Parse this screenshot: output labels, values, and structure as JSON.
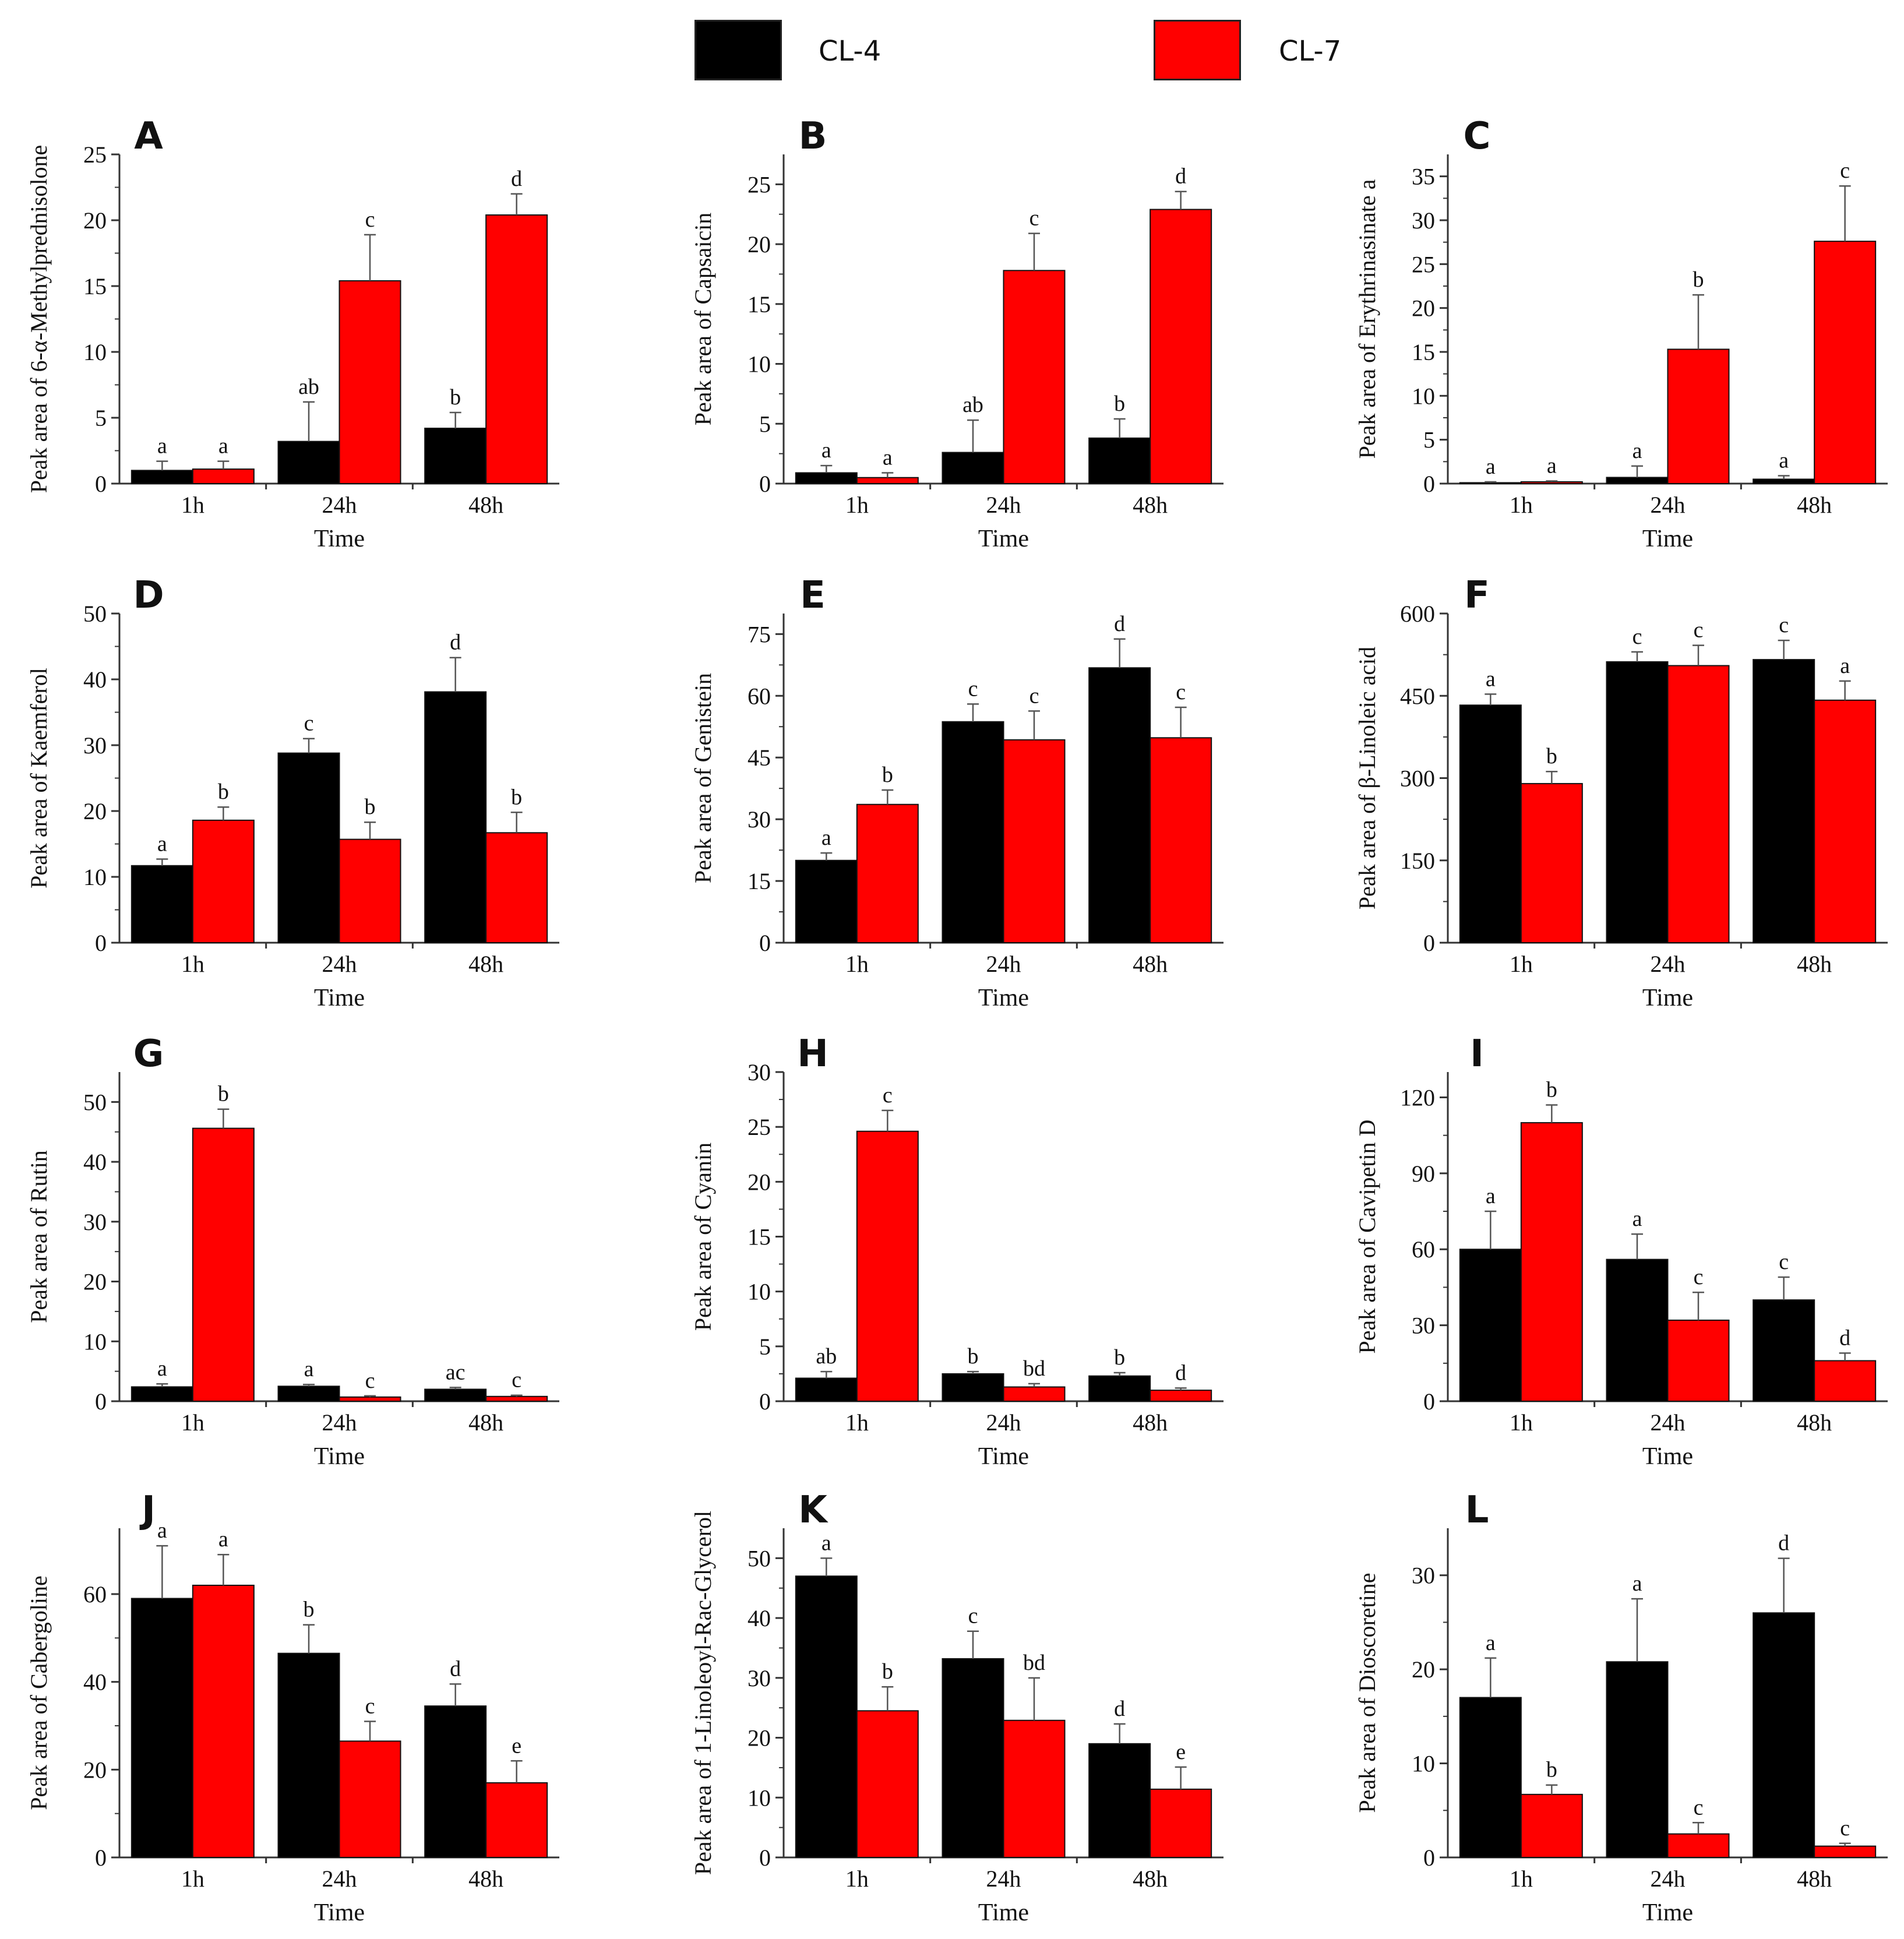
{
  "legend": {
    "items": [
      {
        "name": "CL-4",
        "color": "#000000"
      },
      {
        "name": "CL-7",
        "color": "#ff0000"
      }
    ]
  },
  "chart_data": [
    {
      "panel": "A",
      "type": "bar",
      "categories": [
        "1h",
        "24h",
        "48h"
      ],
      "xlabel": "Time",
      "ylabel": "Peak area of 6-α-Methylprednisolone",
      "ylim": [
        0,
        25
      ],
      "yticks": [
        0,
        5,
        10,
        15,
        20,
        25
      ],
      "series": [
        {
          "name": "CL-4",
          "values": [
            1.0,
            3.2,
            4.2
          ],
          "errors": [
            0.7,
            3.0,
            1.2
          ],
          "letters": [
            "a",
            "ab",
            "b"
          ]
        },
        {
          "name": "CL-7",
          "values": [
            1.1,
            15.4,
            20.4
          ],
          "errors": [
            0.6,
            3.5,
            1.6
          ],
          "letters": [
            "a",
            "c",
            "d"
          ]
        }
      ]
    },
    {
      "panel": "B",
      "type": "bar",
      "categories": [
        "1h",
        "24h",
        "48h"
      ],
      "xlabel": "Time",
      "ylabel": "Peak area of Capsaicin",
      "ylim": [
        0,
        27.5
      ],
      "yticks": [
        0,
        5,
        10,
        15,
        20,
        25
      ],
      "series": [
        {
          "name": "CL-4",
          "values": [
            0.9,
            2.6,
            3.8
          ],
          "errors": [
            0.6,
            2.7,
            1.6
          ],
          "letters": [
            "a",
            "ab",
            "b"
          ]
        },
        {
          "name": "CL-7",
          "values": [
            0.5,
            17.8,
            22.9
          ],
          "errors": [
            0.4,
            3.1,
            1.5
          ],
          "letters": [
            "a",
            "c",
            "d"
          ]
        }
      ]
    },
    {
      "panel": "C",
      "type": "bar",
      "categories": [
        "1h",
        "24h",
        "48h"
      ],
      "xlabel": "Time",
      "ylabel": "Peak area of Erythrinasinate a",
      "ylim": [
        0,
        37.5
      ],
      "yticks": [
        0,
        5,
        10,
        15,
        20,
        25,
        30,
        35
      ],
      "series": [
        {
          "name": "CL-4",
          "values": [
            0.1,
            0.7,
            0.5
          ],
          "errors": [
            0.1,
            1.3,
            0.4
          ],
          "letters": [
            "a",
            "a",
            "a"
          ]
        },
        {
          "name": "CL-7",
          "values": [
            0.2,
            15.3,
            27.6
          ],
          "errors": [
            0.1,
            6.2,
            6.3
          ],
          "letters": [
            "a",
            "b",
            "c"
          ]
        }
      ]
    },
    {
      "panel": "D",
      "type": "bar",
      "categories": [
        "1h",
        "24h",
        "48h"
      ],
      "xlabel": "Time",
      "ylabel": "Peak area of Kaemferol",
      "ylim": [
        0,
        50
      ],
      "yticks": [
        0,
        10,
        20,
        30,
        40,
        50
      ],
      "series": [
        {
          "name": "CL-4",
          "values": [
            11.7,
            28.8,
            38.1
          ],
          "errors": [
            1.0,
            2.2,
            5.2
          ],
          "letters": [
            "a",
            "c",
            "d"
          ]
        },
        {
          "name": "CL-7",
          "values": [
            18.6,
            15.7,
            16.7
          ],
          "errors": [
            2.0,
            2.6,
            3.1
          ],
          "letters": [
            "b",
            "b",
            "b"
          ]
        }
      ]
    },
    {
      "panel": "E",
      "type": "bar",
      "categories": [
        "1h",
        "24h",
        "48h"
      ],
      "xlabel": "Time",
      "ylabel": "Peak area of Genistein",
      "ylim": [
        0,
        80
      ],
      "yticks": [
        0,
        15,
        30,
        45,
        60,
        75
      ],
      "series": [
        {
          "name": "CL-4",
          "values": [
            20.0,
            53.7,
            66.8
          ],
          "errors": [
            1.8,
            4.3,
            7.0
          ],
          "letters": [
            "a",
            "c",
            "d"
          ]
        },
        {
          "name": "CL-7",
          "values": [
            33.6,
            49.3,
            49.8
          ],
          "errors": [
            3.5,
            7.0,
            7.4
          ],
          "letters": [
            "b",
            "c",
            "c"
          ]
        }
      ]
    },
    {
      "panel": "F",
      "type": "bar",
      "categories": [
        "1h",
        "24h",
        "48h"
      ],
      "xlabel": "Time",
      "ylabel": "Peak area of β-Linoleic acid",
      "ylim": [
        0,
        600
      ],
      "yticks": [
        0,
        150,
        300,
        450,
        600
      ],
      "series": [
        {
          "name": "CL-4",
          "values": [
            433,
            512,
            516
          ],
          "errors": [
            20,
            18,
            35
          ],
          "letters": [
            "a",
            "c",
            "c"
          ]
        },
        {
          "name": "CL-7",
          "values": [
            290,
            505,
            442
          ],
          "errors": [
            22,
            37,
            35
          ],
          "letters": [
            "b",
            "c",
            "a"
          ]
        }
      ]
    },
    {
      "panel": "G",
      "type": "bar",
      "categories": [
        "1h",
        "24h",
        "48h"
      ],
      "xlabel": "Time",
      "ylabel": "Peak area of Rutin",
      "ylim": [
        0,
        55
      ],
      "yticks": [
        0,
        10,
        20,
        30,
        40,
        50
      ],
      "series": [
        {
          "name": "CL-4",
          "values": [
            2.4,
            2.5,
            2.0
          ],
          "errors": [
            0.5,
            0.3,
            0.3
          ],
          "letters": [
            "a",
            "a",
            "ac"
          ]
        },
        {
          "name": "CL-7",
          "values": [
            45.6,
            0.7,
            0.8
          ],
          "errors": [
            3.2,
            0.2,
            0.2
          ],
          "letters": [
            "b",
            "c",
            "c"
          ]
        }
      ]
    },
    {
      "panel": "H",
      "type": "bar",
      "categories": [
        "1h",
        "24h",
        "48h"
      ],
      "xlabel": "Time",
      "ylabel": "Peak area of Cyanin",
      "ylim": [
        0,
        30
      ],
      "yticks": [
        0,
        5,
        10,
        15,
        20,
        25,
        30
      ],
      "series": [
        {
          "name": "CL-4",
          "values": [
            2.1,
            2.5,
            2.3
          ],
          "errors": [
            0.6,
            0.2,
            0.3
          ],
          "letters": [
            "ab",
            "b",
            "b"
          ]
        },
        {
          "name": "CL-7",
          "values": [
            24.6,
            1.3,
            1.0
          ],
          "errors": [
            1.9,
            0.3,
            0.2
          ],
          "letters": [
            "c",
            "bd",
            "d"
          ]
        }
      ]
    },
    {
      "panel": "I",
      "type": "bar",
      "categories": [
        "1h",
        "24h",
        "48h"
      ],
      "xlabel": "Time",
      "ylabel": "Peak area of Cavipetin D",
      "ylim": [
        0,
        130
      ],
      "yticks": [
        0,
        30,
        60,
        90,
        120
      ],
      "series": [
        {
          "name": "CL-4",
          "values": [
            60,
            56,
            40
          ],
          "errors": [
            15,
            10,
            9
          ],
          "letters": [
            "a",
            "a",
            "c"
          ]
        },
        {
          "name": "CL-7",
          "values": [
            110,
            32,
            16
          ],
          "errors": [
            7,
            11,
            3
          ],
          "letters": [
            "b",
            "c",
            "d"
          ]
        }
      ]
    },
    {
      "panel": "J",
      "type": "bar",
      "categories": [
        "1h",
        "24h",
        "48h"
      ],
      "xlabel": "Time",
      "ylabel": "Peak area of Cabergoline",
      "ylim": [
        0,
        75
      ],
      "yticks": [
        0,
        20,
        40,
        60
      ],
      "series": [
        {
          "name": "CL-4",
          "values": [
            59,
            46.5,
            34.5
          ],
          "errors": [
            12,
            6.5,
            5
          ],
          "letters": [
            "a",
            "b",
            "d"
          ]
        },
        {
          "name": "CL-7",
          "values": [
            62,
            26.5,
            17
          ],
          "errors": [
            7,
            4.5,
            5
          ],
          "letters": [
            "a",
            "c",
            "e"
          ]
        }
      ]
    },
    {
      "panel": "K",
      "type": "bar",
      "categories": [
        "1h",
        "24h",
        "48h"
      ],
      "xlabel": "Time",
      "ylabel": "Peak area of  1-Linoleoyl-Rac-Glycerol",
      "ylim": [
        0,
        55
      ],
      "yticks": [
        0,
        10,
        20,
        30,
        40,
        50
      ],
      "series": [
        {
          "name": "CL-4",
          "values": [
            47,
            33.2,
            19
          ],
          "errors": [
            3,
            4.6,
            3.3
          ],
          "letters": [
            "a",
            "c",
            "d"
          ]
        },
        {
          "name": "CL-7",
          "values": [
            24.5,
            22.9,
            11.4
          ],
          "errors": [
            4,
            7.1,
            3.7
          ],
          "letters": [
            "b",
            "bd",
            "e"
          ]
        }
      ]
    },
    {
      "panel": "L",
      "type": "bar",
      "categories": [
        "1h",
        "24h",
        "48h"
      ],
      "xlabel": "Time",
      "ylabel": "Peak area of Dioscoretine",
      "ylim": [
        0,
        35
      ],
      "yticks": [
        0,
        10,
        20,
        30
      ],
      "series": [
        {
          "name": "CL-4",
          "values": [
            17,
            20.8,
            26
          ],
          "errors": [
            4.2,
            6.7,
            5.8
          ],
          "letters": [
            "a",
            "a",
            "d"
          ]
        },
        {
          "name": "CL-7",
          "values": [
            6.7,
            2.5,
            1.2
          ],
          "errors": [
            1,
            1.2,
            0.3
          ],
          "letters": [
            "b",
            "c",
            "c"
          ]
        }
      ]
    }
  ]
}
